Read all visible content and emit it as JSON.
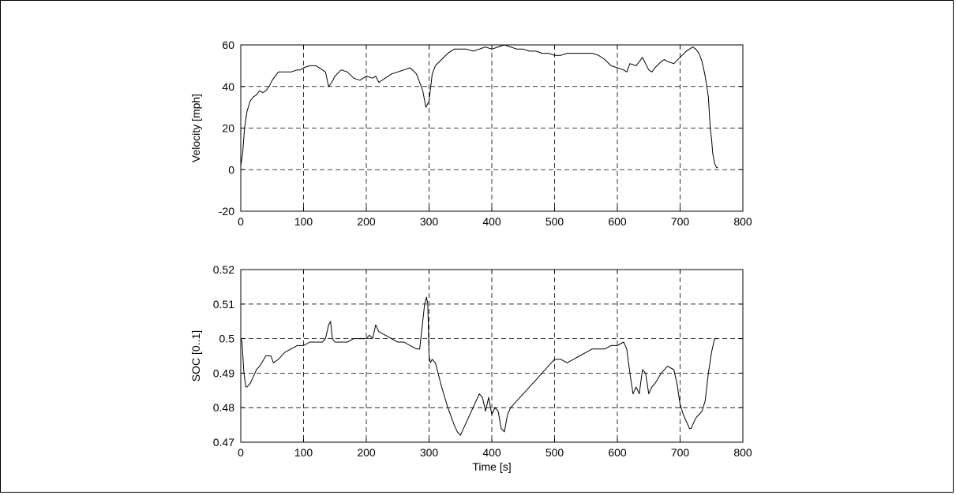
{
  "chart_data": [
    {
      "type": "line",
      "title": "",
      "xlabel": "",
      "ylabel": "Velocity [mph]",
      "xlim": [
        0,
        800
      ],
      "ylim": [
        -20,
        60
      ],
      "xticks": [
        0,
        100,
        200,
        300,
        400,
        500,
        600,
        700,
        800
      ],
      "yticks": [
        -20,
        0,
        20,
        40,
        60
      ],
      "xtick_labels": [
        "0",
        "100",
        "200",
        "300",
        "400",
        "500",
        "600",
        "700",
        "800"
      ],
      "ytick_labels": [
        "-20",
        "0",
        "20",
        "40",
        "60"
      ],
      "grid": true,
      "series": [
        {
          "x": [
            0,
            3,
            6,
            10,
            15,
            20,
            25,
            30,
            35,
            40,
            45,
            50,
            55,
            60,
            70,
            80,
            90,
            95,
            100,
            110,
            120,
            130,
            135,
            140,
            145,
            150,
            160,
            170,
            180,
            190,
            200,
            210,
            215,
            220,
            230,
            240,
            250,
            260,
            270,
            280,
            285,
            290,
            295,
            300,
            305,
            310,
            320,
            330,
            340,
            350,
            360,
            370,
            380,
            390,
            400,
            410,
            420,
            430,
            440,
            450,
            460,
            470,
            480,
            490,
            500,
            510,
            520,
            530,
            540,
            550,
            560,
            570,
            580,
            590,
            600,
            610,
            615,
            620,
            630,
            640,
            650,
            655,
            660,
            670,
            675,
            680,
            690,
            700,
            710,
            715,
            720,
            725,
            730,
            735,
            740,
            745,
            748,
            750,
            752,
            755,
            758,
            760
          ],
          "y": [
            2,
            8,
            20,
            28,
            33,
            35,
            36,
            38,
            37,
            38,
            40,
            43,
            45,
            47,
            47,
            47,
            48,
            48,
            49,
            50,
            50,
            48,
            47,
            40,
            42,
            45,
            48,
            47,
            44,
            43,
            45,
            44,
            45,
            42,
            44,
            46,
            47,
            48,
            49,
            46,
            42,
            38,
            30,
            33,
            46,
            50,
            53,
            56,
            58,
            58,
            58,
            57,
            58,
            59,
            58,
            59,
            60,
            59,
            58,
            58,
            57,
            57,
            56,
            56,
            55,
            55,
            56,
            56,
            56,
            56,
            56,
            55,
            53,
            50,
            49,
            48,
            47,
            51,
            50,
            54,
            48,
            47,
            49,
            52,
            53,
            52,
            51,
            54,
            57,
            58,
            59,
            58,
            56,
            52,
            45,
            35,
            20,
            15,
            8,
            3,
            1,
            1
          ]
        }
      ]
    },
    {
      "type": "line",
      "title": "",
      "xlabel": "Time [s]",
      "ylabel": "SOC [0..1]",
      "xlim": [
        0,
        800
      ],
      "ylim": [
        0.47,
        0.52
      ],
      "xticks": [
        0,
        100,
        200,
        300,
        400,
        500,
        600,
        700,
        800
      ],
      "yticks": [
        0.47,
        0.48,
        0.49,
        0.5,
        0.51,
        0.52
      ],
      "xtick_labels": [
        "0",
        "100",
        "200",
        "300",
        "400",
        "500",
        "600",
        "700",
        "800"
      ],
      "ytick_labels": [
        "0.47",
        "0.48",
        "0.49",
        "0.5",
        "0.51",
        "0.52"
      ],
      "grid": true,
      "series": [
        {
          "x": [
            0,
            2,
            5,
            8,
            10,
            15,
            20,
            25,
            30,
            40,
            48,
            52,
            60,
            70,
            80,
            90,
            100,
            110,
            120,
            130,
            135,
            140,
            143,
            146,
            150,
            160,
            170,
            180,
            190,
            200,
            205,
            210,
            215,
            220,
            230,
            240,
            250,
            260,
            270,
            280,
            285,
            290,
            293,
            296,
            298,
            300,
            302,
            305,
            310,
            320,
            330,
            340,
            345,
            350,
            360,
            370,
            380,
            385,
            390,
            395,
            400,
            405,
            410,
            415,
            420,
            425,
            430,
            440,
            450,
            460,
            470,
            480,
            490,
            500,
            510,
            520,
            530,
            540,
            550,
            560,
            570,
            580,
            590,
            600,
            610,
            615,
            620,
            625,
            630,
            635,
            640,
            645,
            650,
            655,
            660,
            670,
            680,
            690,
            695,
            700,
            705,
            710,
            715,
            718,
            720,
            725,
            730,
            735,
            740,
            745,
            750,
            755,
            760
          ],
          "y": [
            0.5,
            0.499,
            0.49,
            0.486,
            0.486,
            0.487,
            0.489,
            0.491,
            0.492,
            0.495,
            0.495,
            0.493,
            0.494,
            0.496,
            0.497,
            0.498,
            0.498,
            0.499,
            0.499,
            0.499,
            0.5,
            0.504,
            0.505,
            0.5,
            0.499,
            0.499,
            0.499,
            0.5,
            0.5,
            0.5,
            0.501,
            0.5,
            0.504,
            0.502,
            0.501,
            0.5,
            0.499,
            0.499,
            0.498,
            0.497,
            0.497,
            0.505,
            0.51,
            0.512,
            0.51,
            0.495,
            0.493,
            0.494,
            0.493,
            0.486,
            0.48,
            0.475,
            0.473,
            0.472,
            0.476,
            0.48,
            0.484,
            0.483,
            0.479,
            0.483,
            0.478,
            0.48,
            0.479,
            0.474,
            0.473,
            0.478,
            0.48,
            0.482,
            0.484,
            0.486,
            0.488,
            0.49,
            0.492,
            0.494,
            0.494,
            0.493,
            0.494,
            0.495,
            0.496,
            0.497,
            0.497,
            0.497,
            0.498,
            0.498,
            0.499,
            0.497,
            0.49,
            0.484,
            0.486,
            0.484,
            0.491,
            0.49,
            0.484,
            0.486,
            0.487,
            0.49,
            0.492,
            0.491,
            0.487,
            0.481,
            0.478,
            0.476,
            0.474,
            0.474,
            0.475,
            0.477,
            0.478,
            0.479,
            0.482,
            0.49,
            0.496,
            0.5,
            0.5
          ]
        }
      ]
    }
  ]
}
